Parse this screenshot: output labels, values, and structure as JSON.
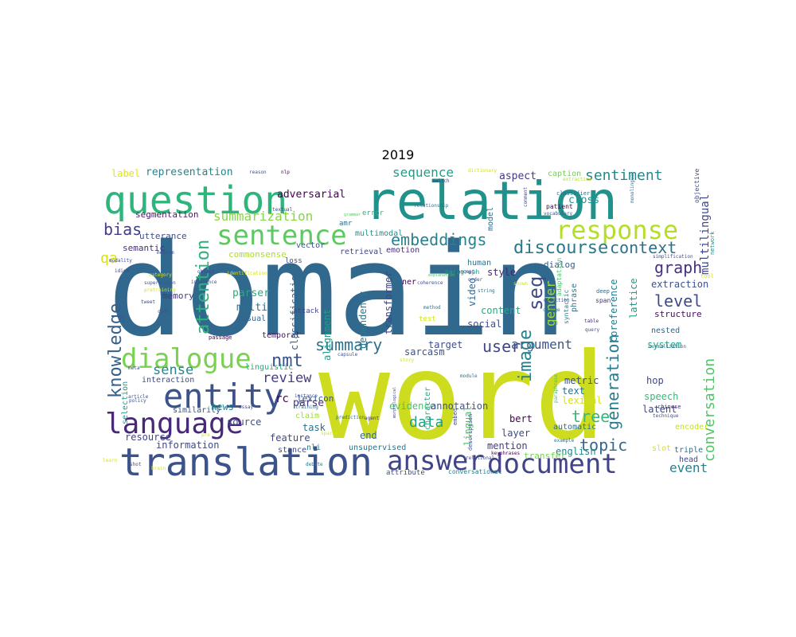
{
  "title": "2019",
  "palette": {
    "viridis_dark": "#440154",
    "viridis_indigo": "#46337e",
    "viridis_blue": "#365c8d",
    "viridis_teal": "#277f8e",
    "viridis_green": "#1fa187",
    "viridis_lime": "#4ac16d",
    "viridis_yellowgreen": "#a0da39",
    "viridis_yellow": "#fde725"
  },
  "words": [
    {
      "text": "domain",
      "color": "#31688e"
    },
    {
      "text": "word",
      "color": "#cddc1f"
    },
    {
      "text": "relation",
      "color": "#21918c"
    },
    {
      "text": "question",
      "color": "#2fb47c"
    },
    {
      "text": "translation",
      "color": "#3b528b"
    },
    {
      "text": "sentence",
      "color": "#5ec962"
    },
    {
      "text": "response",
      "color": "#b5de2b"
    },
    {
      "text": "dialogue",
      "color": "#7ad151"
    },
    {
      "text": "entity",
      "color": "#3b528b"
    },
    {
      "text": "language",
      "color": "#482878"
    },
    {
      "text": "answer",
      "color": "#414487"
    },
    {
      "text": "document",
      "color": "#414487"
    },
    {
      "text": "embeddings",
      "color": "#26828e"
    },
    {
      "text": "discourse",
      "color": "#2a788e"
    },
    {
      "text": "context",
      "color": "#2c728e"
    },
    {
      "text": "graph",
      "color": "#46327e"
    },
    {
      "text": "knowledge",
      "color": "#355f8d"
    },
    {
      "text": "attention",
      "color": "#2db27d"
    },
    {
      "text": "summarization",
      "color": "#86d549"
    },
    {
      "text": "sequence",
      "color": "#1fa088"
    },
    {
      "text": "sentiment",
      "color": "#23898e"
    },
    {
      "text": "bias",
      "color": "#433e85"
    },
    {
      "text": "qa",
      "color": "#d8e219"
    },
    {
      "text": "level",
      "color": "#3e4989"
    },
    {
      "text": "summary",
      "color": "#2c718e"
    },
    {
      "text": "sense",
      "color": "#24868e"
    },
    {
      "text": "review",
      "color": "#433e85"
    },
    {
      "text": "nmt",
      "color": "#3b528b"
    },
    {
      "text": "seq",
      "color": "#3e4a89"
    },
    {
      "text": "user",
      "color": "#404688"
    },
    {
      "text": "argument",
      "color": "#3a548c"
    },
    {
      "text": "image",
      "color": "#26818e"
    },
    {
      "text": "gender",
      "color": "#9dd93b"
    },
    {
      "text": "generation",
      "color": "#297b8e"
    },
    {
      "text": "conversation",
      "color": "#52c569"
    },
    {
      "text": "tree",
      "color": "#37b878"
    },
    {
      "text": "topic",
      "color": "#31688e"
    },
    {
      "text": "event",
      "color": "#277f8e"
    },
    {
      "text": "data",
      "color": "#1f9e89"
    },
    {
      "text": "multilingual",
      "color": "#3f4889"
    },
    {
      "text": "representation",
      "color": "#25848e"
    },
    {
      "text": "label",
      "color": "#dde318"
    },
    {
      "text": "adversarial",
      "color": "#440154"
    },
    {
      "text": "aspect",
      "color": "#443983"
    },
    {
      "text": "caption",
      "color": "#75d054"
    },
    {
      "text": "cross",
      "color": "#1f968b"
    },
    {
      "text": "segmentation",
      "color": "#481668"
    },
    {
      "text": "semantic",
      "color": "#46307e"
    },
    {
      "text": "utterance",
      "color": "#3d4d8a"
    },
    {
      "text": "commonsense",
      "color": "#addc30"
    },
    {
      "text": "memory",
      "color": "#453781"
    },
    {
      "text": "parser",
      "color": "#25ab82"
    },
    {
      "text": "multi",
      "color": "#2e6f8e"
    },
    {
      "text": "visual",
      "color": "#33638d"
    },
    {
      "text": "temporal",
      "color": "#470e61"
    },
    {
      "text": "linguistic",
      "color": "#23a983"
    },
    {
      "text": "interaction",
      "color": "#3d4e8a"
    },
    {
      "text": "selection",
      "color": "#1f9a8a"
    },
    {
      "text": "similarity",
      "color": "#3a548c"
    },
    {
      "text": "resource",
      "color": "#404588"
    },
    {
      "text": "information",
      "color": "#3f4889"
    },
    {
      "text": "news",
      "color": "#24878e"
    },
    {
      "text": "source",
      "color": "#3b528b"
    },
    {
      "text": "rc",
      "color": "#440154"
    },
    {
      "text": "parse",
      "color": "#46337e"
    },
    {
      "text": "task",
      "color": "#2c728e"
    },
    {
      "text": "feature",
      "color": "#3e4989"
    },
    {
      "text": "classification",
      "color": "#31688e"
    },
    {
      "text": "alignment",
      "color": "#1f9e89"
    },
    {
      "text": "dependency",
      "color": "#2a788e"
    },
    {
      "text": "transformer",
      "color": "#3f4788"
    },
    {
      "text": "evidence",
      "color": "#4ac16d"
    },
    {
      "text": "annotation",
      "color": "#3a548c"
    },
    {
      "text": "target",
      "color": "#3d4e8a"
    },
    {
      "text": "sarcasm",
      "color": "#3b528b"
    },
    {
      "text": "human",
      "color": "#2c728e"
    },
    {
      "text": "style",
      "color": "#482475"
    },
    {
      "text": "video",
      "color": "#31688e"
    },
    {
      "text": "content",
      "color": "#25ab82"
    },
    {
      "text": "social",
      "color": "#3d4e8a"
    },
    {
      "text": "dialog",
      "color": "#35608d"
    },
    {
      "text": "phrase",
      "color": "#2a788e"
    },
    {
      "text": "coreference",
      "color": "#287c8e"
    },
    {
      "text": "lattice",
      "color": "#1f9a8a"
    },
    {
      "text": "extraction",
      "color": "#3b528b"
    },
    {
      "text": "structure",
      "color": "#460b5e"
    },
    {
      "text": "system",
      "color": "#1fa287"
    },
    {
      "text": "nested",
      "color": "#31688e"
    },
    {
      "text": "hop",
      "color": "#3f4889"
    },
    {
      "text": "latent",
      "color": "#404688"
    },
    {
      "text": "speech",
      "color": "#37b878"
    },
    {
      "text": "encoder",
      "color": "#c2df23"
    },
    {
      "text": "metric",
      "color": "#3b528b"
    },
    {
      "text": "text",
      "color": "#2c728e"
    },
    {
      "text": "lexical",
      "color": "#d2e21b"
    },
    {
      "text": "lingual",
      "color": "#4ac16d"
    },
    {
      "text": "bert",
      "color": "#440154"
    },
    {
      "text": "automatic",
      "color": "#2f6c8e"
    },
    {
      "text": "english",
      "color": "#25848e"
    },
    {
      "text": "layer",
      "color": "#3e4989"
    },
    {
      "text": "mention",
      "color": "#453882"
    },
    {
      "text": "transfer",
      "color": "#75d054"
    },
    {
      "text": "triple",
      "color": "#2d708e"
    },
    {
      "text": "head",
      "color": "#3f4889"
    },
    {
      "text": "slot",
      "color": "#d8e219"
    },
    {
      "text": "lexicon",
      "color": "#3b528b"
    },
    {
      "text": "claim",
      "color": "#9dd93b"
    },
    {
      "text": "end",
      "color": "#31688e"
    },
    {
      "text": "unsupervised",
      "color": "#2c728e"
    },
    {
      "text": "stance",
      "color": "#3e4989"
    },
    {
      "text": "nli",
      "color": "#277f8e"
    },
    {
      "text": "character",
      "color": "#27ad81"
    },
    {
      "text": "attribute",
      "color": "#3b528b"
    },
    {
      "text": "conversational",
      "color": "#287c8e"
    },
    {
      "text": "retrieval",
      "color": "#404688"
    },
    {
      "text": "emotion",
      "color": "#46327e"
    },
    {
      "text": "vector",
      "color": "#3b528b"
    },
    {
      "text": "multimodal",
      "color": "#21908d"
    },
    {
      "text": "ner",
      "color": "#440154"
    },
    {
      "text": "attack",
      "color": "#3f4889"
    },
    {
      "text": "test",
      "color": "#d2e21b"
    },
    {
      "text": "loss",
      "color": "#3e4989"
    },
    {
      "text": "error",
      "color": "#2fb47c"
    },
    {
      "text": "amr",
      "color": "#2d708e"
    },
    {
      "text": "model",
      "color": "#2c728e"
    },
    {
      "text": "paragraph",
      "color": "#1fa088"
    },
    {
      "text": "adaptation",
      "color": "#4ac16d"
    },
    {
      "text": "syntactic",
      "color": "#277f8e"
    },
    {
      "text": "deep",
      "color": "#31688e"
    },
    {
      "text": "span",
      "color": "#46337e"
    },
    {
      "text": "patient",
      "color": "#440154"
    },
    {
      "text": "vocabulary",
      "color": "#3b528b"
    },
    {
      "text": "classifier",
      "color": "#2c728e"
    },
    {
      "text": "extractive",
      "color": "#b5de2b"
    },
    {
      "text": "monolingual",
      "color": "#2c728e"
    },
    {
      "text": "objective",
      "color": "#3e4989"
    },
    {
      "text": "network",
      "color": "#21908d"
    },
    {
      "text": "tool",
      "color": "#d8e219"
    },
    {
      "text": "simplification",
      "color": "#3b528b"
    },
    {
      "text": "normalization",
      "color": "#2c728e"
    },
    {
      "text": "chinese",
      "color": "#46337e"
    },
    {
      "text": "technique",
      "color": "#3b528b"
    },
    {
      "text": "example",
      "color": "#2c728e"
    },
    {
      "text": "keyphrases",
      "color": "#440154"
    },
    {
      "text": "order",
      "color": "#3e4989"
    },
    {
      "text": "detection",
      "color": "#3b528b"
    },
    {
      "text": "change",
      "color": "#2c728e"
    },
    {
      "text": "table",
      "color": "#46337e"
    },
    {
      "text": "query",
      "color": "#3b528b"
    },
    {
      "text": "shown",
      "color": "#d8e219"
    },
    {
      "text": "method",
      "color": "#2c728e"
    },
    {
      "text": "explanation",
      "color": "#4ac16d"
    },
    {
      "text": "coherence",
      "color": "#3b528b"
    },
    {
      "text": "concept",
      "color": "#3e4989"
    },
    {
      "text": "string",
      "color": "#2c728e"
    },
    {
      "text": "comment",
      "color": "#3e4989"
    },
    {
      "text": "dictionary",
      "color": "#d8e219"
    },
    {
      "text": "relationship",
      "color": "#2c728e"
    },
    {
      "text": "switch",
      "color": "#46337e"
    },
    {
      "text": "grammar",
      "color": "#5ec962"
    },
    {
      "text": "textual",
      "color": "#3e4989"
    },
    {
      "text": "reason",
      "color": "#3b528b"
    },
    {
      "text": "nlp",
      "color": "#440154"
    },
    {
      "text": "description",
      "color": "#3b528b"
    },
    {
      "text": "embed",
      "color": "#3e4989"
    },
    {
      "text": "agent",
      "color": "#46337e"
    },
    {
      "text": "relational",
      "color": "#3b528b"
    },
    {
      "text": "prediction",
      "color": "#2c728e"
    },
    {
      "text": "sparse",
      "color": "#d8e219"
    },
    {
      "text": "debate",
      "color": "#2c728e"
    },
    {
      "text": "morphological",
      "color": "#3e4989"
    },
    {
      "text": "story",
      "color": "#d8e219"
    },
    {
      "text": "capsule",
      "color": "#3b528b"
    },
    {
      "text": "module",
      "color": "#2c728e"
    },
    {
      "text": "paraphrase",
      "color": "#4ac16d"
    },
    {
      "text": "mt",
      "color": "#3e4989"
    },
    {
      "text": "training",
      "color": "#2c728e"
    },
    {
      "text": "instance",
      "color": "#3b528b"
    },
    {
      "text": "brain",
      "color": "#d8e219"
    },
    {
      "text": "shot",
      "color": "#3e4989"
    },
    {
      "text": "article",
      "color": "#3b528b"
    },
    {
      "text": "learn",
      "color": "#d8e219"
    },
    {
      "text": "policy",
      "color": "#3b528b"
    },
    {
      "text": "essay",
      "color": "#3e4989"
    },
    {
      "text": "pre",
      "color": "#d8e219"
    },
    {
      "text": "meta",
      "color": "#3b528b"
    },
    {
      "text": "passage",
      "color": "#440154"
    },
    {
      "text": "code",
      "color": "#3b528b"
    },
    {
      "text": "tweet",
      "color": "#3e4989"
    },
    {
      "text": "inference",
      "color": "#3b528b"
    },
    {
      "text": "object",
      "color": "#3e4989"
    },
    {
      "text": "supervision",
      "color": "#3b528b"
    },
    {
      "text": "category",
      "color": "#d8e219"
    },
    {
      "text": "idiom",
      "color": "#3e4989"
    },
    {
      "text": "medium",
      "color": "#3b528b"
    },
    {
      "text": "modality",
      "color": "#3e4989"
    },
    {
      "text": "pretraining",
      "color": "#d8e219"
    },
    {
      "text": "identification",
      "color": "#d8e219"
    }
  ]
}
